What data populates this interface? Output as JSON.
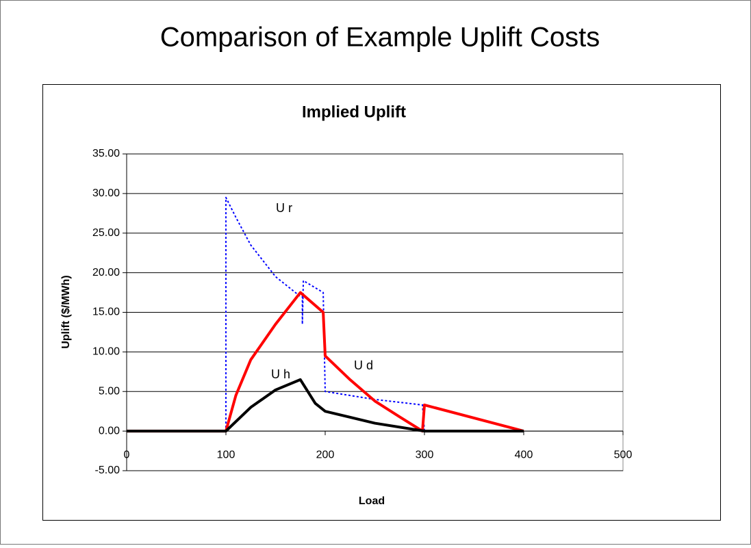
{
  "title": "Comparison of Example Uplift Costs",
  "chart_data": {
    "type": "line",
    "title": "Implied Uplift",
    "x_label": "Load",
    "y_label": "Uplift ($/MWh)",
    "xlim": [
      0,
      500
    ],
    "xticks": [
      0,
      100,
      200,
      300,
      400,
      500
    ],
    "ylim": [
      -5,
      35
    ],
    "yticks": [
      {
        "value": -5,
        "label": "-5.00"
      },
      {
        "value": 0,
        "label": "0.00"
      },
      {
        "value": 5,
        "label": "5.00"
      },
      {
        "value": 10,
        "label": "10.00"
      },
      {
        "value": 15,
        "label": "15.00"
      },
      {
        "value": 20,
        "label": "20.00"
      },
      {
        "value": 25,
        "label": "25.00"
      },
      {
        "value": 30,
        "label": "30.00"
      },
      {
        "value": 35,
        "label": "35.00"
      }
    ],
    "grid": true,
    "series": [
      {
        "name": "U r",
        "color": "#0000ff",
        "style": "dotted",
        "x": [
          0,
          100,
          100,
          110,
          125,
          150,
          175,
          177,
          177,
          178,
          198,
          200,
          250,
          298,
          300,
          400
        ],
        "values": [
          0,
          0,
          29.5,
          27,
          23.5,
          19.5,
          17,
          17,
          13.5,
          19,
          17.5,
          5,
          4,
          3.3,
          0,
          0
        ]
      },
      {
        "name": "U d",
        "color": "#ff0000",
        "style": "solid",
        "x": [
          0,
          100,
          110,
          125,
          150,
          175,
          198,
          200,
          225,
          250,
          275,
          298,
          300,
          400
        ],
        "values": [
          0,
          0,
          4.5,
          9,
          13.5,
          17.5,
          15,
          9.5,
          6.5,
          3.8,
          1.8,
          0,
          3.3,
          0
        ]
      },
      {
        "name": "U h",
        "color": "#000000",
        "style": "solid",
        "x": [
          0,
          100,
          125,
          150,
          175,
          190,
          200,
          250,
          300,
          400
        ],
        "values": [
          0,
          0,
          3,
          5.2,
          6.5,
          3.5,
          2.5,
          1,
          0,
          0
        ]
      }
    ]
  }
}
